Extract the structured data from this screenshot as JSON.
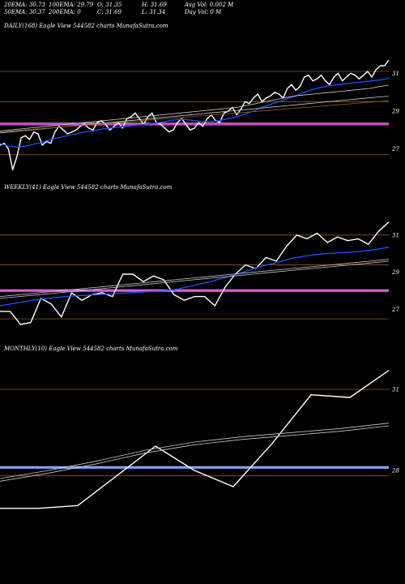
{
  "header": {
    "row1": [
      "20EMA: 30.73",
      "100EMA: 29.79",
      "O: 31.35",
      "H: 31.69",
      "Avg Vol: 0.002  M"
    ],
    "row2": [
      "50EMA: 30.37",
      "200EMA: 0",
      "C: 31.69",
      "L: 31.34",
      "Day Vol: 0  M"
    ]
  },
  "colors": {
    "background": "#000000",
    "price": "#ffffff",
    "ema_fast": "#1f4fff",
    "ema_slow": "#c9c9c9",
    "grid": "#8a5a1a",
    "level_magenta": "#d040d0",
    "level_blue": "#6f8fff"
  },
  "chart_data": [
    {
      "type": "line",
      "title": "DAILY(168) Eagle  View  544582  charts MunafaSutra.com",
      "ylim": [
        26.3,
        32.3
      ],
      "yticks": [
        27,
        29,
        31
      ],
      "grid_y": [
        31.1,
        29.5,
        28.3,
        26.7
      ],
      "level": {
        "value": 28.3,
        "color": "#d040d0"
      },
      "series": [
        {
          "role": "price",
          "values": [
            27.2,
            27.3,
            27.0,
            25.9,
            26.6,
            27.6,
            27.7,
            27.5,
            27.9,
            27.8,
            27.2,
            27.4,
            27.3,
            27.9,
            28.2,
            28.0,
            27.8,
            27.9,
            28.0,
            28.2,
            28.3,
            28.1,
            28.0,
            28.4,
            28.5,
            28.3,
            28.0,
            28.2,
            28.4,
            28.1,
            28.6,
            28.7,
            28.9,
            28.6,
            28.3,
            28.7,
            28.9,
            28.4,
            28.3,
            28.1,
            27.9,
            28.0,
            28.4,
            28.6,
            28.3,
            28.0,
            28.1,
            28.4,
            28.2,
            28.6,
            28.8,
            28.5,
            28.4,
            28.9,
            29.0,
            29.2,
            28.8,
            29.1,
            29.5,
            29.4,
            29.7,
            29.9,
            29.5,
            29.7,
            29.8,
            30.0,
            29.9,
            29.7,
            30.2,
            30.4,
            30.1,
            30.3,
            30.8,
            30.9,
            30.6,
            30.7,
            30.9,
            30.6,
            30.4,
            30.8,
            31.0,
            30.6,
            30.8,
            31.0,
            30.9,
            30.7,
            30.9,
            31.1,
            30.8,
            31.2,
            31.4,
            31.4,
            31.7
          ]
        },
        {
          "role": "ema_fast",
          "values": [
            27.3,
            27.15,
            27.1,
            27.15,
            27.25,
            27.35,
            27.5,
            27.6,
            27.7,
            27.8,
            27.9,
            27.95,
            28.05,
            28.1,
            28.15,
            28.2,
            28.25,
            28.3,
            28.35,
            28.4,
            28.5,
            28.55,
            28.55,
            28.5,
            28.45,
            28.45,
            28.5,
            28.6,
            28.7,
            28.85,
            29.0,
            29.2,
            29.35,
            29.5,
            29.65,
            29.8,
            30.0,
            30.15,
            30.25,
            30.35,
            30.4,
            30.45,
            30.5,
            30.55,
            30.6,
            30.65,
            30.73
          ]
        },
        {
          "role": "ema_slow",
          "values": [
            27.95,
            28.0,
            28.05,
            28.1,
            28.15,
            28.2,
            28.25,
            28.3,
            28.35,
            28.4,
            28.45,
            28.5,
            28.55,
            28.6,
            28.65,
            28.7,
            28.75,
            28.8,
            28.85,
            28.9,
            28.95,
            29.0,
            29.05,
            29.1,
            29.15,
            29.2,
            29.3,
            29.4,
            29.5,
            29.6,
            29.7,
            29.8,
            29.85,
            29.9,
            29.95,
            30.0,
            30.05,
            30.1,
            30.15,
            30.2,
            30.3,
            30.37
          ]
        },
        {
          "role": "ema_slow",
          "values": [
            27.85,
            27.9,
            27.95,
            28.0,
            28.05,
            28.1,
            28.15,
            28.2,
            28.25,
            28.3,
            28.35,
            28.4,
            28.45,
            28.5,
            28.55,
            28.6,
            28.65,
            28.7,
            28.75,
            28.8,
            28.85,
            28.9,
            28.95,
            29.0,
            29.05,
            29.1,
            29.15,
            29.2,
            29.25,
            29.3,
            29.35,
            29.4,
            29.45,
            29.5,
            29.55,
            29.6,
            29.65,
            29.7,
            29.75,
            29.79
          ]
        },
        {
          "role": "ema_grid",
          "values": [
            27.9,
            28.05,
            28.2,
            28.35,
            28.5,
            28.65,
            28.8,
            28.95,
            29.1,
            29.25,
            29.4,
            29.55
          ]
        }
      ]
    },
    {
      "type": "line",
      "title": "WEEKLY(41) Eagle  View  544582  charts MunafaSutra.com",
      "ylim": [
        26.2,
        32.3
      ],
      "yticks": [
        27,
        29,
        31
      ],
      "grid_y": [
        31.0,
        29.4,
        28.0,
        26.5
      ],
      "level": {
        "value": 28.0,
        "color": "#d040d0"
      },
      "series": [
        {
          "role": "price",
          "values": [
            26.9,
            26.9,
            26.2,
            26.3,
            27.6,
            27.3,
            26.6,
            27.9,
            27.5,
            27.8,
            27.9,
            27.7,
            28.9,
            28.9,
            28.5,
            28.8,
            28.6,
            27.8,
            27.5,
            27.7,
            27.7,
            27.2,
            28.2,
            28.9,
            29.4,
            29.2,
            29.8,
            29.6,
            30.4,
            31.0,
            30.8,
            31.1,
            30.6,
            30.9,
            30.7,
            30.8,
            30.5,
            31.2,
            31.7
          ]
        },
        {
          "role": "ema_fast",
          "values": [
            27.2,
            27.35,
            27.5,
            27.6,
            27.7,
            27.75,
            27.8,
            27.85,
            27.9,
            27.95,
            28.0,
            28.1,
            28.3,
            28.5,
            28.75,
            29.0,
            29.3,
            29.5,
            29.75,
            29.9,
            30.0,
            30.05,
            30.1,
            30.2,
            30.35
          ]
        },
        {
          "role": "ema_slow",
          "values": [
            27.7,
            27.8,
            27.9,
            28.0,
            28.1,
            28.2,
            28.3,
            28.4,
            28.5,
            28.6,
            28.7,
            28.8,
            28.9,
            29.0,
            29.1,
            29.2,
            29.3,
            29.4,
            29.5,
            29.6,
            29.7
          ]
        },
        {
          "role": "ema_slow",
          "values": [
            27.6,
            27.7,
            27.8,
            27.9,
            28.0,
            28.1,
            28.2,
            28.3,
            28.4,
            28.5,
            28.6,
            28.7,
            28.8,
            28.9,
            29.0,
            29.1,
            29.2,
            29.3,
            29.4,
            29.5,
            29.6
          ]
        }
      ]
    },
    {
      "type": "line",
      "title": "MONTHLY(10) Eagle  View  544582  charts MunafaSutra.com",
      "ylim": [
        26.2,
        32.2
      ],
      "yticks": [
        28,
        31
      ],
      "grid_y": [
        31.0,
        27.8
      ],
      "level": {
        "value": 28.1,
        "color": "#6f8fff"
      },
      "series": [
        {
          "role": "price",
          "values": [
            26.6,
            26.6,
            26.7,
            27.8,
            28.9,
            28.0,
            27.4,
            29.0,
            30.8,
            30.7,
            31.7
          ]
        },
        {
          "role": "ema_slow",
          "values": [
            27.7,
            28.0,
            28.35,
            28.75,
            29.05,
            29.25,
            29.4,
            29.55,
            29.75
          ]
        },
        {
          "role": "ema_slow",
          "values": [
            27.6,
            27.9,
            28.25,
            28.65,
            28.95,
            29.15,
            29.3,
            29.45,
            29.65
          ]
        }
      ]
    }
  ]
}
